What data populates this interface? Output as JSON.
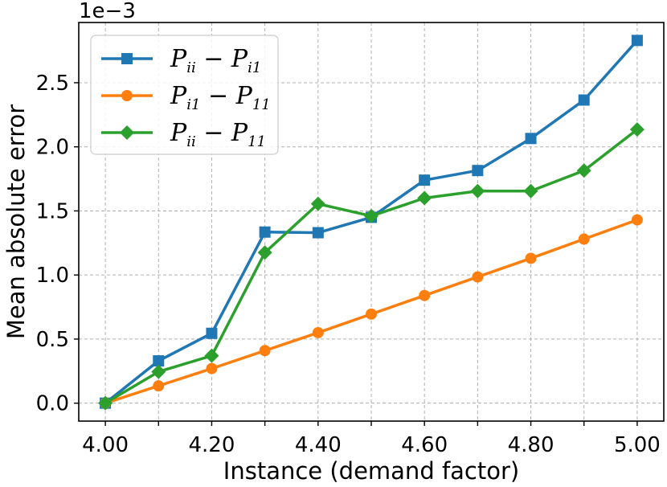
{
  "chart_data": {
    "type": "line",
    "x": [
      4.0,
      4.1,
      4.2,
      4.3,
      4.4,
      4.5,
      4.6,
      4.7,
      4.8,
      4.9,
      5.0
    ],
    "xticks": [
      "4.00",
      "4.20",
      "4.40",
      "4.60",
      "4.80",
      "5.00"
    ],
    "xtick_values": [
      4.0,
      4.2,
      4.4,
      4.6,
      4.8,
      5.0
    ],
    "yticks": [
      "0.0",
      "0.5",
      "1.0",
      "1.5",
      "2.0",
      "2.5"
    ],
    "ytick_values": [
      0.0,
      0.5,
      1.0,
      1.5,
      2.0,
      2.5
    ],
    "y_offset_label": "1e−3",
    "xlabel": "Instance (demand factor)",
    "ylabel": "Mean absolute error",
    "xlim": [
      3.95,
      5.05
    ],
    "ylim": [
      -0.14,
      2.97
    ],
    "grid": true,
    "legend_position": "upper-left",
    "series": [
      {
        "name": "P_ii − P_i1",
        "legend": {
          "a": "P",
          "a_sub": "ii",
          "op": "−",
          "b": "P",
          "b_sub": "i1"
        },
        "color": "#1f77b4",
        "marker": "square",
        "values": [
          0.0,
          0.33,
          0.545,
          1.335,
          1.33,
          1.45,
          1.74,
          1.815,
          2.065,
          2.365,
          2.83
        ]
      },
      {
        "name": "P_i1 − P_11",
        "legend": {
          "a": "P",
          "a_sub": "i1",
          "op": "−",
          "b": "P",
          "b_sub": "11"
        },
        "color": "#ff7f0e",
        "marker": "circle",
        "values": [
          0.0,
          0.135,
          0.27,
          0.41,
          0.55,
          0.695,
          0.84,
          0.985,
          1.13,
          1.28,
          1.43
        ]
      },
      {
        "name": "P_ii − P_11",
        "legend": {
          "a": "P",
          "a_sub": "ii",
          "op": "−",
          "b": "P",
          "b_sub": "11"
        },
        "color": "#2ca02c",
        "marker": "diamond",
        "values": [
          0.0,
          0.245,
          0.37,
          1.175,
          1.555,
          1.46,
          1.6,
          1.655,
          1.655,
          1.815,
          2.135
        ]
      }
    ]
  }
}
